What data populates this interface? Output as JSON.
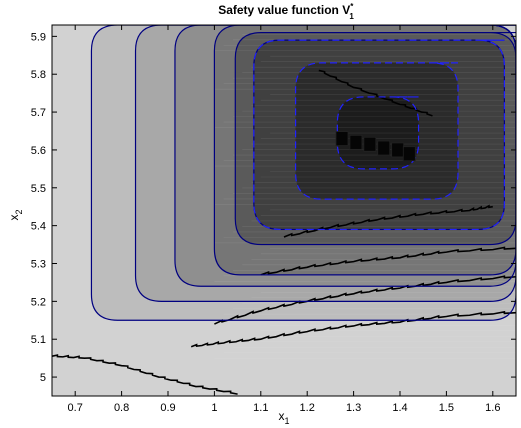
{
  "chart_data": {
    "type": "heatmap",
    "title": "Safety value function V",
    "title_sup": "*",
    "title_sub": "1",
    "xlabel": "x",
    "xlabel_sub": "1",
    "ylabel": "x",
    "ylabel_sub": "2",
    "xlim": [
      0.65,
      1.65
    ],
    "ylim": [
      4.95,
      5.93
    ],
    "xticks": [
      "0.7",
      "0.8",
      "0.9",
      "1",
      "1.1",
      "1.2",
      "1.3",
      "1.4",
      "1.5",
      "1.6"
    ],
    "xtick_values": [
      0.7,
      0.8,
      0.9,
      1.0,
      1.1,
      1.2,
      1.3,
      1.4,
      1.5,
      1.6
    ],
    "yticks": [
      "5",
      "5.1",
      "5.2",
      "5.3",
      "5.4",
      "5.5",
      "5.6",
      "5.7",
      "5.8",
      "5.9"
    ],
    "ytick_values": [
      5.0,
      5.1,
      5.2,
      5.3,
      5.4,
      5.5,
      5.6,
      5.7,
      5.8,
      5.9
    ],
    "colormap": "gray",
    "grid": false,
    "levels": [
      {
        "x0": 0.65,
        "x1": 1.65,
        "y0": 4.95,
        "y1": 5.93,
        "gray": "#d2d2d2"
      },
      {
        "x0": 0.735,
        "x1": 1.65,
        "y0": 5.15,
        "y1": 5.93,
        "gray": "#bdbdbd"
      },
      {
        "x0": 0.83,
        "x1": 1.65,
        "y0": 5.2,
        "y1": 5.93,
        "gray": "#a8a8a8"
      },
      {
        "x0": 0.915,
        "x1": 1.65,
        "y0": 5.24,
        "y1": 5.93,
        "gray": "#8f8f8f"
      },
      {
        "x0": 1.0,
        "x1": 1.65,
        "y0": 5.27,
        "y1": 5.93,
        "gray": "#767676"
      },
      {
        "x0": 1.045,
        "x1": 1.65,
        "y0": 5.35,
        "y1": 5.91,
        "gray": "#5a5a5a"
      },
      {
        "x0": 1.085,
        "x1": 1.625,
        "y0": 5.39,
        "y1": 5.89,
        "gray": "#404040"
      },
      {
        "x0": 1.175,
        "x1": 1.525,
        "y0": 5.47,
        "y1": 5.83,
        "gray": "#2b2b2b"
      },
      {
        "x0": 1.265,
        "x1": 1.44,
        "y0": 5.55,
        "y1": 5.74,
        "gray": "#1c1c1c"
      }
    ],
    "contours": [
      {
        "style": "solid",
        "color": "#000080",
        "x": 0.735,
        "y": 5.15,
        "x_right": 1.65,
        "y_top": 5.93
      },
      {
        "style": "solid",
        "color": "#000080",
        "x": 0.83,
        "y": 5.2,
        "x_right": 1.65,
        "y_top": 5.93
      },
      {
        "style": "solid",
        "color": "#000080",
        "x": 0.915,
        "y": 5.24,
        "x_right": 1.65,
        "y_top": 5.93
      },
      {
        "style": "solid",
        "color": "#000080",
        "x": 1.0,
        "y": 5.27,
        "x_right": 1.65,
        "y_top": 5.93
      },
      {
        "style": "solid",
        "color": "#000080",
        "x": 1.045,
        "y": 5.35,
        "x_right": 1.65,
        "y_top": 5.91
      },
      {
        "style": "solid",
        "color": "#000080",
        "x": 1.085,
        "y": 5.39,
        "x_right": 1.625,
        "y_top": 5.89
      },
      {
        "style": "dashed",
        "color": "#2222ff",
        "x": 1.085,
        "y": 5.39,
        "x_right": 1.625,
        "y_top": 5.89
      },
      {
        "style": "dashed",
        "color": "#2222ff",
        "x": 1.175,
        "y": 5.47,
        "x_right": 1.525,
        "y_top": 5.83
      },
      {
        "style": "dashed",
        "color": "#2222ff",
        "x": 1.265,
        "y": 5.55,
        "x_right": 1.44,
        "y_top": 5.74
      }
    ],
    "boundary_curves": [
      [
        [
          0.65,
          5.055
        ],
        [
          0.72,
          5.05
        ],
        [
          0.8,
          5.03
        ],
        [
          0.88,
          5.0
        ],
        [
          0.96,
          4.975
        ],
        [
          1.05,
          4.955
        ]
      ],
      [
        [
          0.95,
          5.08
        ],
        [
          1.02,
          5.09
        ],
        [
          1.1,
          5.1
        ],
        [
          1.2,
          5.12
        ],
        [
          1.3,
          5.135
        ],
        [
          1.4,
          5.145
        ],
        [
          1.5,
          5.16
        ],
        [
          1.65,
          5.17
        ]
      ],
      [
        [
          1.0,
          5.14
        ],
        [
          1.1,
          5.175
        ],
        [
          1.2,
          5.2
        ],
        [
          1.3,
          5.22
        ],
        [
          1.4,
          5.235
        ],
        [
          1.5,
          5.25
        ],
        [
          1.65,
          5.265
        ]
      ],
      [
        [
          1.1,
          5.27
        ],
        [
          1.2,
          5.29
        ],
        [
          1.3,
          5.305
        ],
        [
          1.4,
          5.315
        ],
        [
          1.5,
          5.33
        ],
        [
          1.65,
          5.34
        ]
      ],
      [
        [
          1.15,
          5.37
        ],
        [
          1.25,
          5.395
        ],
        [
          1.35,
          5.415
        ],
        [
          1.45,
          5.43
        ],
        [
          1.55,
          5.44
        ],
        [
          1.6,
          5.45
        ]
      ],
      [
        [
          1.225,
          5.81
        ],
        [
          1.3,
          5.765
        ],
        [
          1.4,
          5.72
        ],
        [
          1.47,
          5.69
        ]
      ]
    ],
    "dark_points": [
      {
        "x": 1.275,
        "y": 5.63
      },
      {
        "x": 1.305,
        "y": 5.62
      },
      {
        "x": 1.335,
        "y": 5.615
      },
      {
        "x": 1.365,
        "y": 5.605
      },
      {
        "x": 1.395,
        "y": 5.6
      },
      {
        "x": 1.42,
        "y": 5.59
      }
    ]
  }
}
